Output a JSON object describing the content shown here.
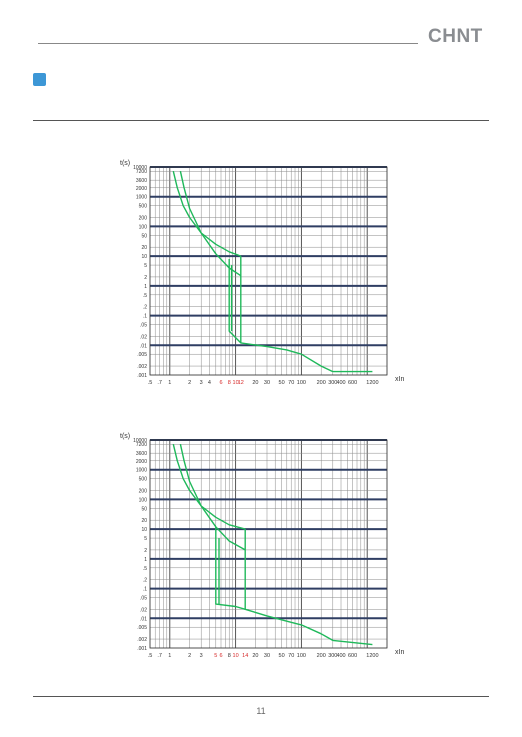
{
  "header": {
    "logo_text": "CHNT",
    "accent_color": "#3d97d6"
  },
  "page_number": "11",
  "chart_data": [
    {
      "type": "line",
      "ylabel": "t(s)",
      "xlabel": "xIn",
      "x_scale": "log",
      "y_scale": "log",
      "xlim": [
        0.5,
        2000
      ],
      "ylim": [
        0.001,
        10000
      ],
      "x_ticks": [
        {
          "v": 0.5,
          "label": ".5"
        },
        {
          "v": 0.7,
          "label": ".7"
        },
        {
          "v": 1,
          "label": "1"
        },
        {
          "v": 2,
          "label": "2"
        },
        {
          "v": 3,
          "label": "3"
        },
        {
          "v": 4,
          "label": "4"
        },
        {
          "v": 6,
          "label": "6",
          "red": true
        },
        {
          "v": 8,
          "label": "8",
          "red": true
        },
        {
          "v": 10,
          "label": "10",
          "red": true
        },
        {
          "v": 12,
          "label": "12",
          "red": true
        },
        {
          "v": 20,
          "label": "20"
        },
        {
          "v": 30,
          "label": "30"
        },
        {
          "v": 50,
          "label": "50"
        },
        {
          "v": 70,
          "label": "70"
        },
        {
          "v": 100,
          "label": "100"
        },
        {
          "v": 200,
          "label": "200"
        },
        {
          "v": 300,
          "label": "300"
        },
        {
          "v": 400,
          "label": "400"
        },
        {
          "v": 600,
          "label": "600"
        },
        {
          "v": 1200,
          "label": "1200"
        }
      ],
      "y_ticks": [
        {
          "v": 10000,
          "label": "10000"
        },
        {
          "v": 7200,
          "label": "7200"
        },
        {
          "v": 3600,
          "label": "3600"
        },
        {
          "v": 2000,
          "label": "2000"
        },
        {
          "v": 1000,
          "label": "1000"
        },
        {
          "v": 500,
          "label": "500"
        },
        {
          "v": 200,
          "label": "200"
        },
        {
          "v": 100,
          "label": "100"
        },
        {
          "v": 50,
          "label": "50"
        },
        {
          "v": 20,
          "label": "20"
        },
        {
          "v": 10,
          "label": "10"
        },
        {
          "v": 5,
          "label": "5"
        },
        {
          "v": 2,
          "label": "2"
        },
        {
          "v": 1,
          "label": "1"
        },
        {
          "v": 0.5,
          "label": ".5"
        },
        {
          "v": 0.2,
          "label": ".2"
        },
        {
          "v": 0.1,
          "label": ".1"
        },
        {
          "v": 0.05,
          "label": ".05"
        },
        {
          "v": 0.02,
          "label": ".02"
        },
        {
          "v": 0.01,
          "label": ".01"
        },
        {
          "v": 0.005,
          "label": ".005"
        },
        {
          "v": 0.002,
          "label": ".002"
        },
        {
          "v": 0.001,
          "label": ".001"
        }
      ],
      "bold_y": [
        10000,
        1000,
        100,
        10,
        1,
        0.1,
        0.01
      ],
      "series": [
        {
          "points": [
            [
              1.13,
              7200
            ],
            [
              1.3,
              2000
            ],
            [
              1.6,
              500
            ],
            [
              2,
              200
            ],
            [
              3,
              60
            ],
            [
              5,
              25
            ],
            [
              8,
              14
            ],
            [
              12,
              10
            ]
          ]
        },
        {
          "points": [
            [
              1.45,
              7200
            ],
            [
              1.65,
              2000
            ],
            [
              2,
              400
            ],
            [
              3,
              60
            ],
            [
              5,
              12
            ],
            [
              8,
              4
            ],
            [
              12,
              2.2
            ]
          ]
        },
        {
          "points": [
            [
              8,
              8
            ],
            [
              8,
              0.03
            ],
            [
              12,
              0.012
            ],
            [
              30,
              0.009
            ],
            [
              60,
              0.007
            ],
            [
              100,
              0.005
            ],
            [
              200,
              0.002
            ],
            [
              300,
              0.0013
            ],
            [
              1200,
              0.0013
            ]
          ]
        },
        {
          "points": [
            [
              12,
              10
            ],
            [
              12,
              0.012
            ]
          ]
        },
        {
          "points": [
            [
              8.7,
              5
            ],
            [
              8.7,
              0.03
            ]
          ]
        }
      ]
    },
    {
      "type": "line",
      "ylabel": "t(s)",
      "xlabel": "xIn",
      "x_scale": "log",
      "y_scale": "log",
      "xlim": [
        0.5,
        2000
      ],
      "ylim": [
        0.001,
        10000
      ],
      "x_ticks": [
        {
          "v": 0.5,
          "label": ".5"
        },
        {
          "v": 0.7,
          "label": ".7"
        },
        {
          "v": 1,
          "label": "1"
        },
        {
          "v": 2,
          "label": "2"
        },
        {
          "v": 3,
          "label": "3"
        },
        {
          "v": 5,
          "label": "5",
          "red": true
        },
        {
          "v": 6,
          "label": "6",
          "red": true
        },
        {
          "v": 8,
          "label": "8"
        },
        {
          "v": 10,
          "label": "10",
          "red": true
        },
        {
          "v": 14,
          "label": "14",
          "red": true
        },
        {
          "v": 20,
          "label": "20"
        },
        {
          "v": 30,
          "label": "30"
        },
        {
          "v": 50,
          "label": "50"
        },
        {
          "v": 70,
          "label": "70"
        },
        {
          "v": 100,
          "label": "100"
        },
        {
          "v": 200,
          "label": "200"
        },
        {
          "v": 300,
          "label": "300"
        },
        {
          "v": 400,
          "label": "400"
        },
        {
          "v": 600,
          "label": "600"
        },
        {
          "v": 1200,
          "label": "1200"
        }
      ],
      "y_ticks": [
        {
          "v": 10000,
          "label": "10000"
        },
        {
          "v": 7200,
          "label": "7200"
        },
        {
          "v": 3600,
          "label": "3600"
        },
        {
          "v": 2000,
          "label": "2000"
        },
        {
          "v": 1000,
          "label": "1000"
        },
        {
          "v": 500,
          "label": "500"
        },
        {
          "v": 200,
          "label": "200"
        },
        {
          "v": 100,
          "label": "100"
        },
        {
          "v": 50,
          "label": "50"
        },
        {
          "v": 20,
          "label": "20"
        },
        {
          "v": 10,
          "label": "10"
        },
        {
          "v": 5,
          "label": "5"
        },
        {
          "v": 2,
          "label": "2"
        },
        {
          "v": 1,
          "label": "1"
        },
        {
          "v": 0.5,
          "label": ".5"
        },
        {
          "v": 0.2,
          "label": ".2"
        },
        {
          "v": 0.1,
          "label": ".1"
        },
        {
          "v": 0.05,
          "label": ".05"
        },
        {
          "v": 0.02,
          "label": ".02"
        },
        {
          "v": 0.01,
          "label": ".01"
        },
        {
          "v": 0.005,
          "label": ".005"
        },
        {
          "v": 0.002,
          "label": ".002"
        },
        {
          "v": 0.001,
          "label": ".001"
        }
      ],
      "bold_y": [
        10000,
        1000,
        100,
        10,
        1,
        0.1,
        0.01
      ],
      "series": [
        {
          "points": [
            [
              1.13,
              7200
            ],
            [
              1.3,
              2000
            ],
            [
              1.6,
              500
            ],
            [
              2,
              200
            ],
            [
              3,
              60
            ],
            [
              5,
              25
            ],
            [
              8,
              14
            ],
            [
              14,
              10
            ]
          ]
        },
        {
          "points": [
            [
              1.45,
              7200
            ],
            [
              1.65,
              2000
            ],
            [
              2,
              400
            ],
            [
              3,
              60
            ],
            [
              5,
              12
            ],
            [
              8,
              4
            ],
            [
              14,
              2
            ]
          ]
        },
        {
          "points": [
            [
              5,
              12
            ],
            [
              5,
              0.03
            ],
            [
              10,
              0.025
            ],
            [
              14,
              0.02
            ],
            [
              30,
              0.012
            ],
            [
              60,
              0.008
            ],
            [
              100,
              0.006
            ],
            [
              200,
              0.003
            ],
            [
              300,
              0.0018
            ],
            [
              1200,
              0.0013
            ]
          ]
        },
        {
          "points": [
            [
              14,
              10
            ],
            [
              14,
              0.02
            ]
          ]
        },
        {
          "points": [
            [
              5.6,
              5
            ],
            [
              5.6,
              0.03
            ]
          ]
        }
      ]
    }
  ]
}
